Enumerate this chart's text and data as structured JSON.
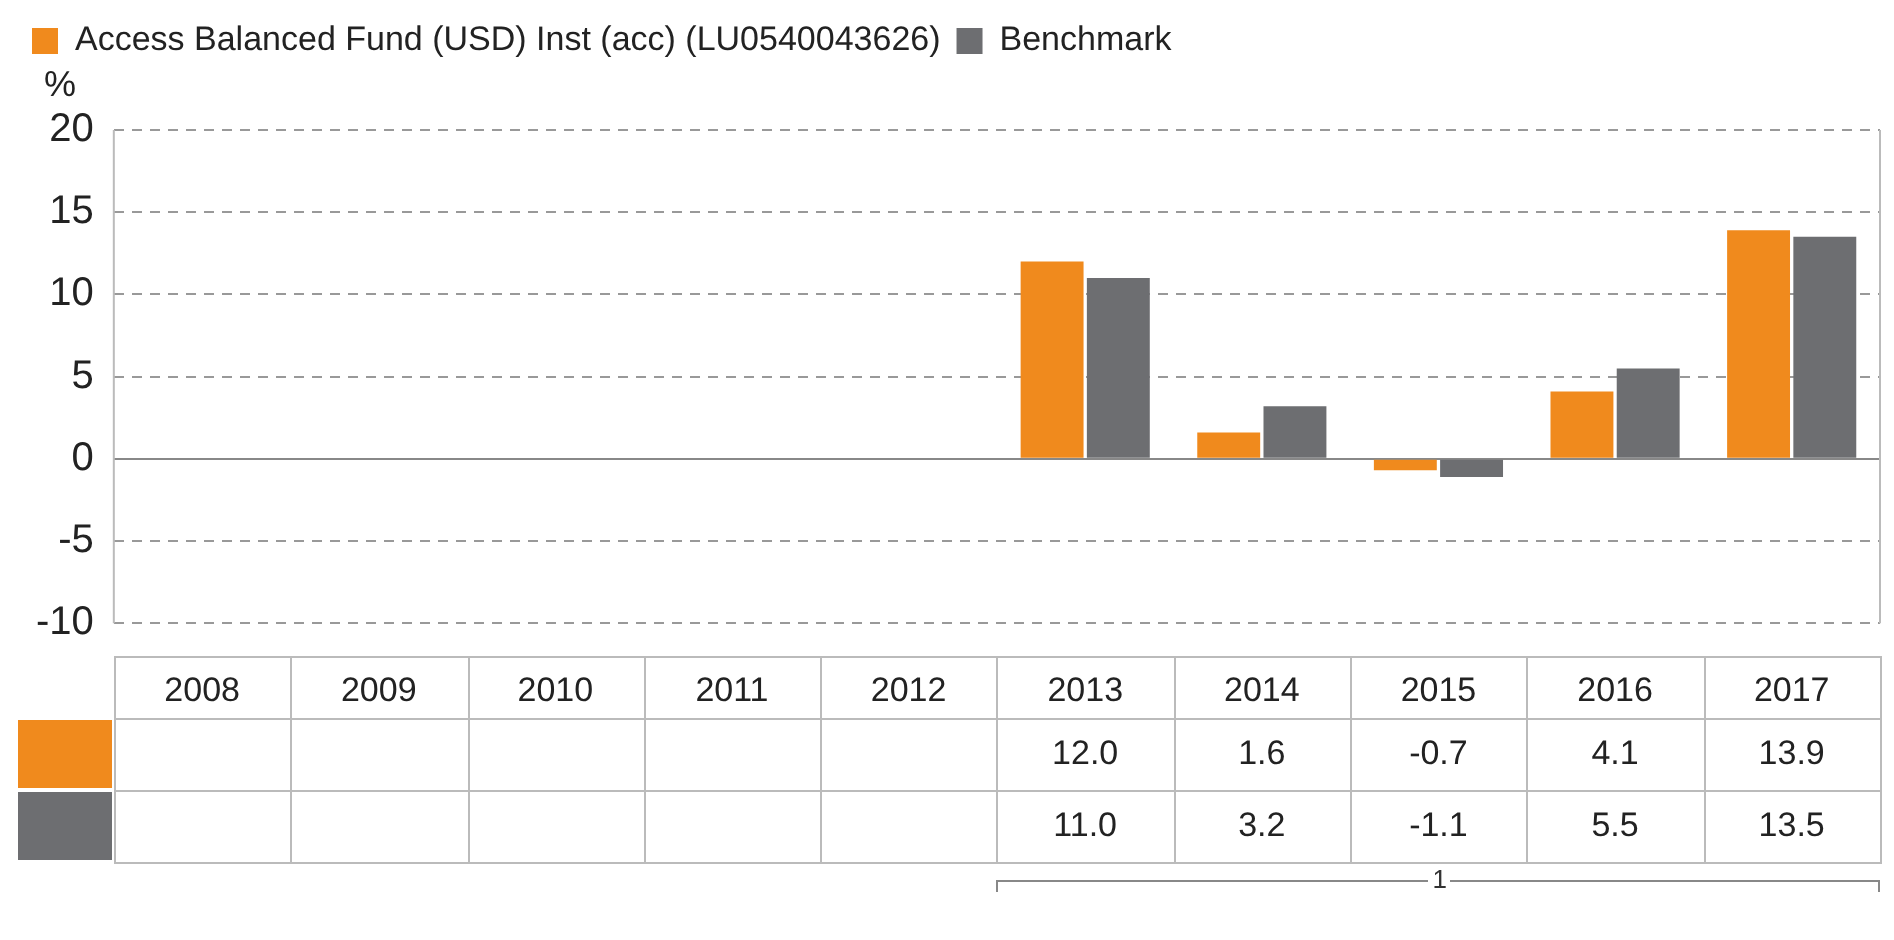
{
  "chart_data": {
    "type": "bar",
    "ylabel": "%",
    "categories": [
      "2008",
      "2009",
      "2010",
      "2011",
      "2012",
      "2013",
      "2014",
      "2015",
      "2016",
      "2017"
    ],
    "series": [
      {
        "name": "Access Balanced Fund (USD) Inst (acc) (LU0540043626)",
        "color": "#f08a1d",
        "values": [
          null,
          null,
          null,
          null,
          null,
          12.0,
          1.6,
          -0.7,
          4.1,
          13.9
        ],
        "value_labels": [
          null,
          null,
          null,
          null,
          null,
          "12.0",
          "1.6",
          "-0.7",
          "4.1",
          "13.9"
        ]
      },
      {
        "name": "Benchmark",
        "color": "#6d6e71",
        "values": [
          null,
          null,
          null,
          null,
          null,
          11.0,
          3.2,
          -1.1,
          5.5,
          13.5
        ],
        "value_labels": [
          null,
          null,
          null,
          null,
          null,
          "11.0",
          "3.2",
          "-1.1",
          "5.5",
          "13.5"
        ]
      }
    ],
    "ylim": [
      -10,
      20
    ],
    "yticks": [
      -10,
      -5,
      0,
      5,
      10,
      15,
      20
    ],
    "grid": "y",
    "legend": "top left",
    "annotations": [
      "1"
    ]
  }
}
